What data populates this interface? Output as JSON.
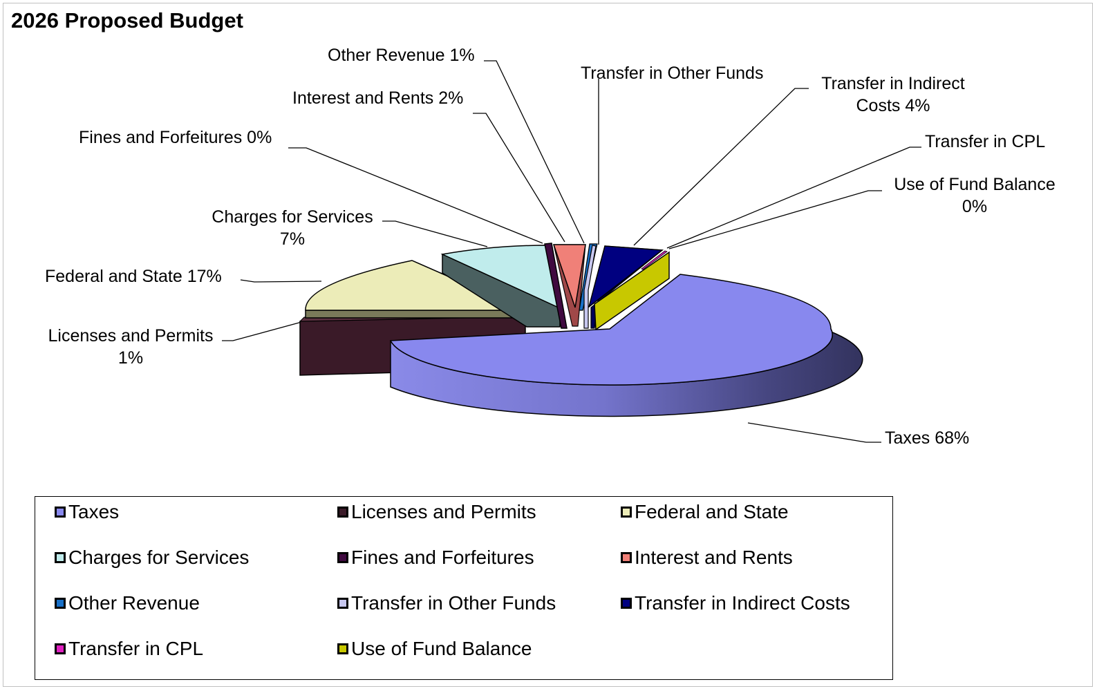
{
  "chart_data": {
    "type": "pie",
    "title": "2026 Proposed Budget",
    "slices": [
      {
        "name": "Taxes",
        "label": "Taxes 68%",
        "value": 68,
        "color": "#8888ee"
      },
      {
        "name": "Licenses and Permits",
        "label": "Licenses and Permits\n1%",
        "value": 1,
        "color": "#3a1a28"
      },
      {
        "name": "Federal and State",
        "label": "Federal and State 17%",
        "value": 17,
        "color": "#ececb8"
      },
      {
        "name": "Charges for Services",
        "label": "Charges for Services\n7%",
        "value": 7,
        "color": "#c0ecec"
      },
      {
        "name": "Fines and Forfeitures",
        "label": "Fines and Forfeitures 0%",
        "value": 0,
        "color": "#400a40"
      },
      {
        "name": "Interest and Rents",
        "label": "Interest and Rents 2%",
        "value": 2,
        "color": "#f08078"
      },
      {
        "name": "Other Revenue",
        "label": "Other Revenue 1%",
        "value": 1,
        "color": "#1870c8"
      },
      {
        "name": "Transfer in Other Funds",
        "label": "Transfer in Other Funds",
        "value": null,
        "color": "#c8c8f0"
      },
      {
        "name": "Transfer in Indirect Costs",
        "label": "Transfer in Indirect\nCosts 4%",
        "value": 4,
        "color": "#000080"
      },
      {
        "name": "Transfer in CPL",
        "label": "Transfer in CPL",
        "value": null,
        "color": "#e020c0"
      },
      {
        "name": "Use of Fund Balance",
        "label": "Use of Fund Balance\n0%",
        "value": 0,
        "color": "#c8c800"
      }
    ],
    "legend_position": "bottom"
  }
}
